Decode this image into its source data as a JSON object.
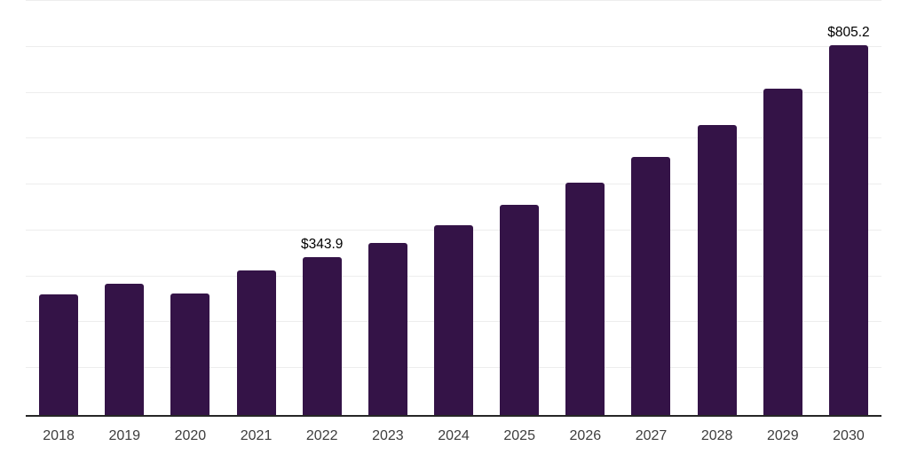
{
  "chart_data": {
    "type": "bar",
    "title": "",
    "xlabel": "",
    "ylabel": "",
    "categories": [
      "2018",
      "2019",
      "2020",
      "2021",
      "2022",
      "2023",
      "2024",
      "2025",
      "2026",
      "2027",
      "2028",
      "2029",
      "2030"
    ],
    "values": [
      262,
      286,
      264,
      315,
      343.9,
      374,
      414,
      457,
      507,
      563,
      631,
      711,
      805.2
    ],
    "annotations": [
      {
        "category": "2022",
        "text": "$343.9"
      },
      {
        "category": "2030",
        "text": "$805.2"
      }
    ],
    "ylim": [
      0,
      900
    ],
    "gridline_values": [
      100,
      200,
      300,
      400,
      500,
      600,
      700,
      800,
      900
    ],
    "grid_on": true,
    "legend_position": "none",
    "y_axis_labels_visible": false,
    "colors": {
      "bar": "#341347",
      "axis_line": "#262626",
      "gridline": "#ededed",
      "tick_label": "#3d3d3d",
      "annotation_text": "#000000",
      "background": "#ffffff"
    }
  }
}
